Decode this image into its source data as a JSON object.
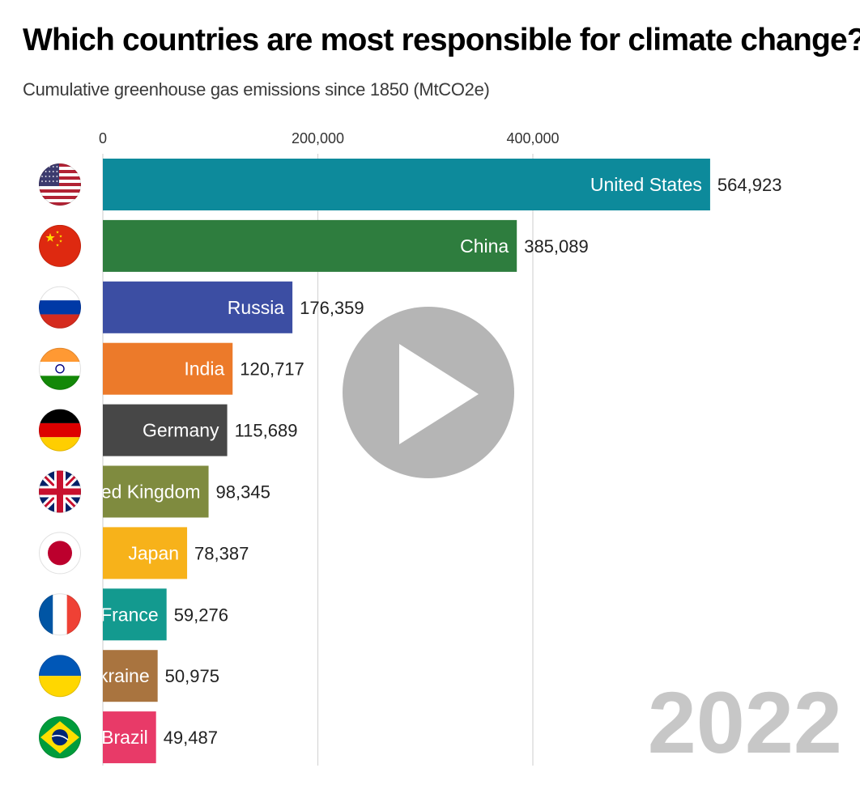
{
  "title": "Which countries are most responsible for climate change?",
  "subtitle": "Cumulative greenhouse gas emissions since 1850 (MtCO2e)",
  "year": "2022",
  "play_icon": "play-icon",
  "chart_data": {
    "type": "bar",
    "orientation": "horizontal",
    "title": "Which countries are most responsible for climate change?",
    "subtitle": "Cumulative greenhouse gas emissions since 1850 (MtCO2e)",
    "xlim": [
      0,
      700000
    ],
    "xticks": [
      {
        "value": 0,
        "label": "0"
      },
      {
        "value": 200000,
        "label": "200,000"
      },
      {
        "value": 400000,
        "label": "400,000"
      }
    ],
    "grid": true,
    "bars": [
      {
        "category": "United States",
        "shown_label": "United States",
        "value": 564923,
        "value_label": "564,923",
        "color": "#0d8a9b",
        "flag": "united-states-flag"
      },
      {
        "category": "China",
        "shown_label": "China",
        "value": 385089,
        "value_label": "385,089",
        "color": "#2e7d3e",
        "flag": "china-flag"
      },
      {
        "category": "Russia",
        "shown_label": "Russia",
        "value": 176359,
        "value_label": "176,359",
        "color": "#3c4ea3",
        "flag": "russia-flag"
      },
      {
        "category": "India",
        "shown_label": "India",
        "value": 120717,
        "value_label": "120,717",
        "color": "#ec7a2a",
        "flag": "india-flag"
      },
      {
        "category": "Germany",
        "shown_label": "Germany",
        "value": 115689,
        "value_label": "115,689",
        "color": "#474747",
        "flag": "germany-flag"
      },
      {
        "category": "United Kingdom",
        "shown_label": "ted Kingdom",
        "value": 98345,
        "value_label": "98,345",
        "color": "#7f8b3f",
        "flag": "united-kingdom-flag"
      },
      {
        "category": "Japan",
        "shown_label": "Japan",
        "value": 78387,
        "value_label": "78,387",
        "color": "#f7b21a",
        "flag": "japan-flag"
      },
      {
        "category": "France",
        "shown_label": "France",
        "value": 59276,
        "value_label": "59,276",
        "color": "#139a8f",
        "flag": "france-flag"
      },
      {
        "category": "Ukraine",
        "shown_label": "kraine",
        "value": 50975,
        "value_label": "50,975",
        "color": "#a9743f",
        "flag": "ukraine-flag"
      },
      {
        "category": "Brazil",
        "shown_label": "Brazil",
        "value": 49487,
        "value_label": "49,487",
        "color": "#e83a68",
        "flag": "brazil-flag"
      }
    ]
  }
}
